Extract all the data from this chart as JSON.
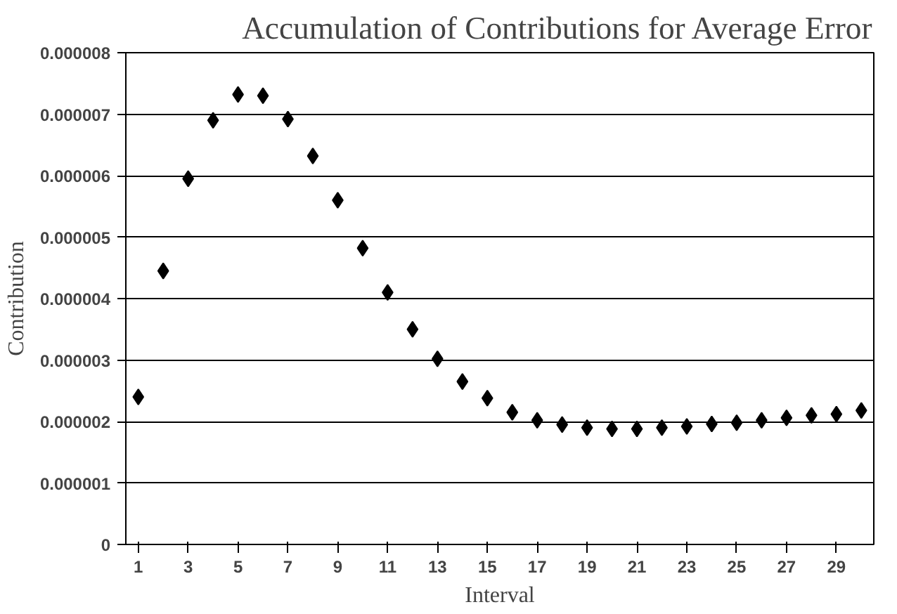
{
  "chart_data": {
    "type": "scatter",
    "title": "Accumulation of Contributions for Average Error",
    "xlabel": "Interval",
    "ylabel": "Contribution",
    "x": [
      1,
      2,
      3,
      4,
      5,
      6,
      7,
      8,
      9,
      10,
      11,
      12,
      13,
      14,
      15,
      16,
      17,
      18,
      19,
      20,
      21,
      22,
      23,
      24,
      25,
      26,
      27,
      28,
      29,
      30
    ],
    "values": [
      2.4e-06,
      4.45e-06,
      5.95e-06,
      6.9e-06,
      7.32e-06,
      7.3e-06,
      6.92e-06,
      6.32e-06,
      5.6e-06,
      4.82e-06,
      4.1e-06,
      3.5e-06,
      3.02e-06,
      2.65e-06,
      2.38e-06,
      2.15e-06,
      2.02e-06,
      1.95e-06,
      1.9e-06,
      1.88e-06,
      1.88e-06,
      1.9e-06,
      1.92e-06,
      1.96e-06,
      1.98e-06,
      2.02e-06,
      2.06e-06,
      2.1e-06,
      2.12e-06,
      2.18e-06
    ],
    "color": "#000000",
    "marker": "diamond",
    "grid": "y",
    "xlim": [
      0.5,
      30.5
    ],
    "xticks": [
      1,
      3,
      5,
      7,
      9,
      11,
      13,
      15,
      17,
      19,
      21,
      23,
      25,
      27,
      29
    ],
    "ylim": [
      0,
      8e-06
    ],
    "yticks": [
      0,
      {
        "value": 1e-06,
        "label": "0.000001"
      },
      {
        "value": 2e-06,
        "label": "0.000002"
      },
      {
        "value": 3e-06,
        "label": "0.000003"
      },
      {
        "value": 4e-06,
        "label": "0.000004"
      },
      {
        "value": 5e-06,
        "label": "0.000005"
      },
      {
        "value": 6e-06,
        "label": "0.000006"
      },
      {
        "value": 7e-06,
        "label": "0.000007"
      },
      {
        "value": 8e-06,
        "label": "0.000008"
      }
    ]
  }
}
